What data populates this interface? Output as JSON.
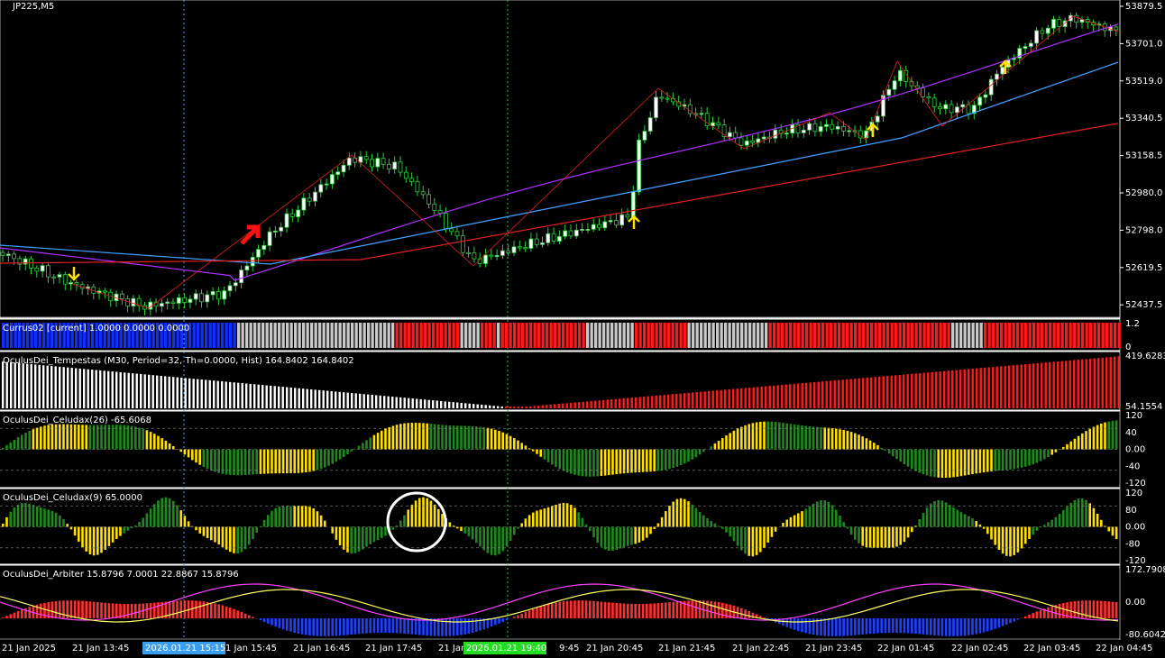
{
  "header": {
    "title": "JP225,M5"
  },
  "price_scale": [
    "53879.5",
    "53701.0",
    "53519.0",
    "53340.5",
    "53158.5",
    "52980.0",
    "52798.0",
    "52619.5",
    "52437.5"
  ],
  "panels": [
    {
      "label": "Currus02 [current] 1.0000 0.0000 0.0000",
      "scale": [
        "1.2",
        "0"
      ]
    },
    {
      "label": "OculusDei_Tempestas (M30, Period=32, Th=0.0000, Hist) 164.8402 164.8402",
      "scale": [
        "419.6283",
        "54.1554"
      ]
    },
    {
      "label": "OculusDei_Celudax(26) -65.6068",
      "scale": [
        "120",
        "40",
        "0.00",
        "-40",
        "-120"
      ]
    },
    {
      "label": "OculusDei_Celudax(9) 65.0000",
      "scale": [
        "120",
        "80",
        "0.00",
        "-80",
        "-120"
      ]
    },
    {
      "label": "OculusDei_Arbiter 15.8796 7.0001 22.8867 15.8796",
      "scale": [
        "172.7908",
        "0.00",
        "-80.6042"
      ]
    }
  ],
  "time_axis": [
    "21 Jan 2025",
    "21 Jan 13:45",
    "1 Jan 15:45",
    "21 Jan 16:45",
    "21 Jan 17:45",
    "21 Jan",
    "9:45",
    "21 Jan 20:45",
    "21 Jan 21:45",
    "21 Jan 22:45",
    "21 Jan 23:45",
    "22 Jan 01:45",
    "22 Jan 02:45",
    "22 Jan 03:45",
    "22 Jan 04:45"
  ],
  "cursor_labels": [
    "2026.01.21 15:15",
    "2026.01.21 19:40"
  ]
}
